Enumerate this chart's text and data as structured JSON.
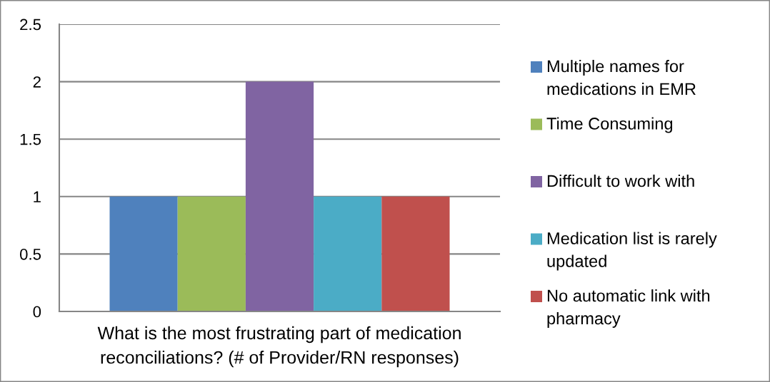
{
  "chart_data": {
    "type": "bar",
    "categories": [
      "What is the most frustrating part of medication reconciliations? (# of Provider/RN responses)"
    ],
    "series": [
      {
        "name": "Multiple names for medications in EMR",
        "color": "#4f81bd",
        "values": [
          1
        ]
      },
      {
        "name": "Time Consuming",
        "color": "#9bbb59",
        "values": [
          1
        ]
      },
      {
        "name": "Difficult to work with",
        "color": "#8064a2",
        "values": [
          2
        ]
      },
      {
        "name": "Medication list is rarely updated",
        "color": "#4bacc6",
        "values": [
          1
        ]
      },
      {
        "name": "No automatic link with pharmacy",
        "color": "#c0504d",
        "values": [
          1
        ]
      }
    ],
    "ylim": [
      0,
      2.5
    ],
    "yticks": [
      0,
      0.5,
      1,
      1.5,
      2,
      2.5
    ],
    "grid": "y",
    "legend": "right"
  }
}
